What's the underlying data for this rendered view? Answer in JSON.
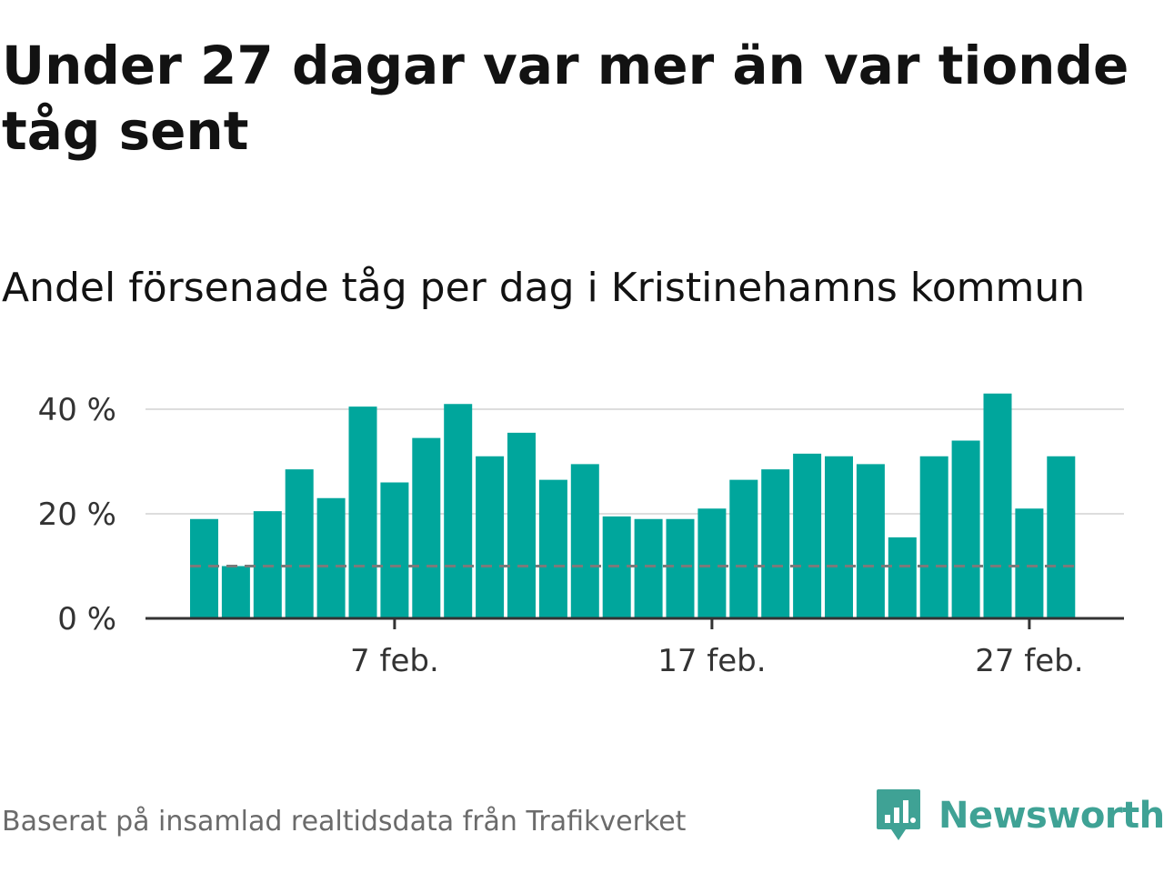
{
  "title": "Under 27 dagar var mer än var tionde tåg sent",
  "subtitle": "Andel försenade tåg per dag i Kristinehamns kommun",
  "source": "Baserat på insamlad realtidsdata från Trafikverket",
  "brand": "Newsworthy",
  "icons": {
    "logo": "newsworthy-logo-icon"
  },
  "colors": {
    "bar": "#00a69c",
    "reference_line": "#7a7a7a",
    "grid": "#dddddd",
    "axis": "#333333",
    "brand": "#3fa295"
  },
  "chart_data": {
    "type": "bar",
    "x": [
      "1 feb.",
      "2 feb.",
      "3 feb.",
      "4 feb.",
      "5 feb.",
      "6 feb.",
      "7 feb.",
      "8 feb.",
      "9 feb.",
      "10 feb.",
      "11 feb.",
      "12 feb.",
      "13 feb.",
      "14 feb.",
      "15 feb.",
      "16 feb.",
      "17 feb.",
      "18 feb.",
      "19 feb.",
      "20 feb.",
      "21 feb.",
      "22 feb.",
      "23 feb.",
      "24 feb.",
      "25 feb.",
      "26 feb.",
      "27 feb.",
      "28 feb."
    ],
    "values": [
      19,
      10,
      20.5,
      28.5,
      23,
      40.5,
      26,
      34.5,
      41,
      31,
      35.5,
      26.5,
      29.5,
      19.5,
      19,
      19,
      21,
      26.5,
      28.5,
      31.5,
      31,
      29.5,
      15.5,
      31,
      34,
      43,
      21,
      31
    ],
    "reference_value": 10,
    "x_ticks": [
      "7 feb.",
      "17 feb.",
      "27 feb."
    ],
    "y_ticks": [
      "0 %",
      "20 %",
      "40 %"
    ],
    "y_tick_values": [
      0,
      20,
      40
    ],
    "ylim": [
      0,
      45
    ],
    "grid": true
  }
}
